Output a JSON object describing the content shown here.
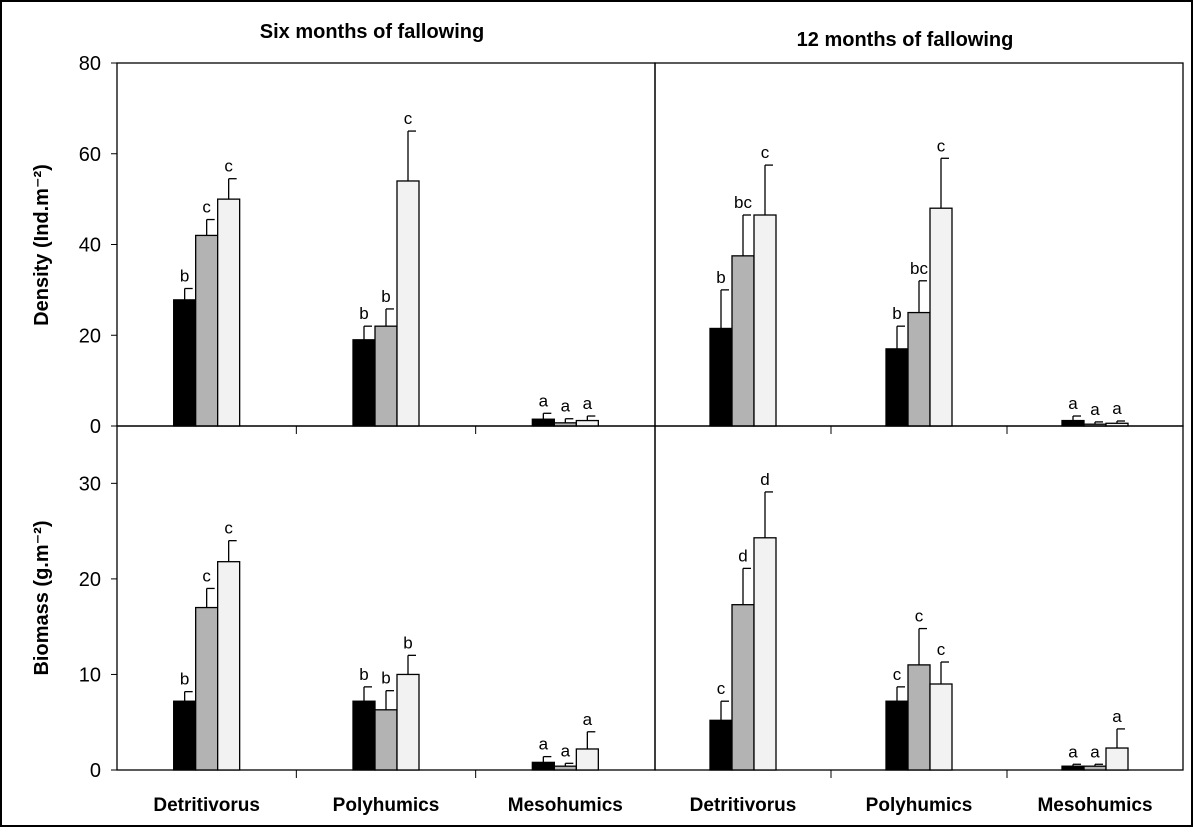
{
  "chart_data": [
    {
      "type": "bar",
      "title": "Six months of fallowing",
      "ylabel": "Density (Ind.m⁻²)",
      "ylim": [
        0,
        80
      ],
      "yticks": [
        0,
        20,
        40,
        60,
        80
      ],
      "categories": [
        "Detritivorus",
        "Polyhumics",
        "Mesohumics"
      ],
      "bar_colors": [
        "#000000",
        "#b3b3b3",
        "#f2f2f2"
      ],
      "bars": [
        {
          "value": 27.8,
          "error": 2.5,
          "letter": "b"
        },
        {
          "value": 42,
          "error": 3.5,
          "letter": "c"
        },
        {
          "value": 50,
          "error": 4.5,
          "letter": "c"
        },
        {
          "value": 19,
          "error": 3,
          "letter": "b"
        },
        {
          "value": 22,
          "error": 3.8,
          "letter": "b"
        },
        {
          "value": 54,
          "error": 11,
          "letter": "c"
        },
        {
          "value": 1.5,
          "error": 1.3,
          "letter": "a"
        },
        {
          "value": 0.7,
          "error": 0.9,
          "letter": "a"
        },
        {
          "value": 1.2,
          "error": 1.0,
          "letter": "a"
        }
      ]
    },
    {
      "type": "bar",
      "title": "12 months of fallowing",
      "ylabel": "Density (Ind.m⁻²)",
      "ylim": [
        0,
        80
      ],
      "yticks": [
        0,
        20,
        40,
        60,
        80
      ],
      "categories": [
        "Detritivorus",
        "Polyhumics",
        "Mesohumics"
      ],
      "bar_colors": [
        "#000000",
        "#b3b3b3",
        "#f2f2f2"
      ],
      "bars": [
        {
          "value": 21.5,
          "error": 8.5,
          "letter": "b"
        },
        {
          "value": 37.5,
          "error": 9,
          "letter": "bc"
        },
        {
          "value": 46.5,
          "error": 11,
          "letter": "c"
        },
        {
          "value": 17,
          "error": 5,
          "letter": "b"
        },
        {
          "value": 25,
          "error": 7,
          "letter": "bc"
        },
        {
          "value": 48,
          "error": 11,
          "letter": "c"
        },
        {
          "value": 1.2,
          "error": 1.0,
          "letter": "a"
        },
        {
          "value": 0.4,
          "error": 0.5,
          "letter": "a"
        },
        {
          "value": 0.6,
          "error": 0.5,
          "letter": "a"
        }
      ]
    },
    {
      "type": "bar",
      "title": "",
      "ylabel": "Biomass (g.m⁻²)",
      "ylim": [
        0,
        36
      ],
      "yticks": [
        0,
        10,
        20,
        30
      ],
      "categories": [
        "Detritivorus",
        "Polyhumics",
        "Mesohumics"
      ],
      "bar_colors": [
        "#000000",
        "#b3b3b3",
        "#f2f2f2"
      ],
      "bars": [
        {
          "value": 7.2,
          "error": 1.0,
          "letter": "b"
        },
        {
          "value": 17,
          "error": 2.0,
          "letter": "c"
        },
        {
          "value": 21.8,
          "error": 2.2,
          "letter": "c"
        },
        {
          "value": 7.2,
          "error": 1.5,
          "letter": "b"
        },
        {
          "value": 6.3,
          "error": 2.0,
          "letter": "b"
        },
        {
          "value": 10,
          "error": 2.0,
          "letter": "b"
        },
        {
          "value": 0.8,
          "error": 0.6,
          "letter": "a"
        },
        {
          "value": 0.4,
          "error": 0.3,
          "letter": "a"
        },
        {
          "value": 2.2,
          "error": 1.8,
          "letter": "a"
        }
      ]
    },
    {
      "type": "bar",
      "title": "",
      "ylabel": "Biomass (g.m⁻²)",
      "ylim": [
        0,
        36
      ],
      "yticks": [
        0,
        10,
        20,
        30
      ],
      "categories": [
        "Detritivorus",
        "Polyhumics",
        "Mesohumics"
      ],
      "bar_colors": [
        "#000000",
        "#b3b3b3",
        "#f2f2f2"
      ],
      "bars": [
        {
          "value": 5.2,
          "error": 2.0,
          "letter": "c"
        },
        {
          "value": 17.3,
          "error": 3.8,
          "letter": "d"
        },
        {
          "value": 24.3,
          "error": 4.8,
          "letter": "d"
        },
        {
          "value": 7.2,
          "error": 1.5,
          "letter": "c"
        },
        {
          "value": 11,
          "error": 3.8,
          "letter": "c"
        },
        {
          "value": 9,
          "error": 2.3,
          "letter": "c"
        },
        {
          "value": 0.4,
          "error": 0.2,
          "letter": "a"
        },
        {
          "value": 0.4,
          "error": 0.2,
          "letter": "a"
        },
        {
          "value": 2.3,
          "error": 2.0,
          "letter": "a"
        }
      ]
    }
  ]
}
